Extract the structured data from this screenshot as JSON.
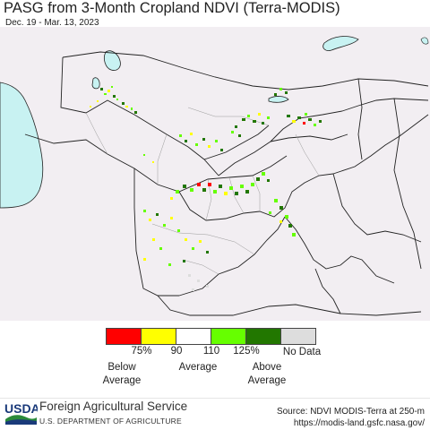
{
  "header": {
    "title": "PASG from 3-Month Cropland NDVI (Terra-MODIS)",
    "date_range": "Dec. 19 - Mar. 13, 2023"
  },
  "map": {
    "colors": {
      "water": "#c8f2f2",
      "land": "#f2eef2",
      "border": "#222222",
      "below_75": "#ff0000",
      "r75_90": "#ffff00",
      "r90_110": "#ffffff",
      "r110_125": "#66ff00",
      "above_125": "#227700",
      "no_data": "#dddddd"
    }
  },
  "legend": {
    "swatch_colors": [
      "#ff0000",
      "#ffff00",
      "#ffffff",
      "#66ff00",
      "#227700",
      "#dddddd"
    ],
    "ticks": [
      "75%",
      "90",
      "110",
      "125%"
    ],
    "below_label": [
      "Below",
      "Average"
    ],
    "average_label": "Average",
    "above_label": [
      "Above",
      "Average"
    ],
    "no_data_label": "No Data"
  },
  "footer": {
    "logo_text": "USDA",
    "agency": "Foreign Agricultural Service",
    "department": "U.S. DEPARTMENT OF AGRICULTURE",
    "source_line1": "Source: NDVI MODIS-Terra at 250-m",
    "source_line2": "https://modis-land.gsfc.nasa.gov/"
  }
}
